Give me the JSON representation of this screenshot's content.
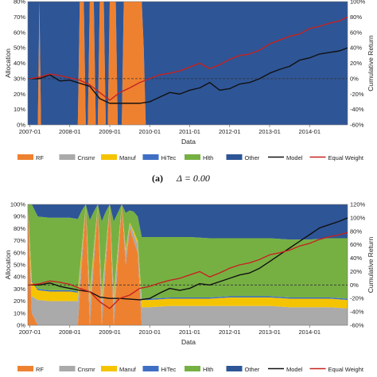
{
  "colors": {
    "RF": "#ee8130",
    "Cnsmr": "#aaaaaa",
    "Manuf": "#f5c400",
    "HiTec": "#3f6fc4",
    "Hlth": "#76b043",
    "Other": "#2e5596",
    "Model": "#111111",
    "Equal Weight": "#c6231f",
    "zero_line": "#333333"
  },
  "legend": [
    {
      "key": "RF",
      "label": "RF",
      "kind": "box"
    },
    {
      "key": "Cnsmr",
      "label": "Cnsmr",
      "kind": "box"
    },
    {
      "key": "Manuf",
      "label": "Manuf",
      "kind": "box"
    },
    {
      "key": "HiTec",
      "label": "HiTec",
      "kind": "box"
    },
    {
      "key": "Hlth",
      "label": "Hlth",
      "kind": "box"
    },
    {
      "key": "Other",
      "label": "Other",
      "kind": "box"
    },
    {
      "key": "Model",
      "label": "Model",
      "kind": "line"
    },
    {
      "key": "Equal Weight",
      "label": "Equal Weight",
      "kind": "line"
    }
  ],
  "chart_data": [
    {
      "type": "area",
      "caption_label": "(a)",
      "caption_math": "Δ = 0.00",
      "xlabel": "Data",
      "ylabel_left": "Allocation",
      "ylabel_right": "Cumulative Return",
      "x_ticks": [
        "2007-01",
        "2008-01",
        "2009-01",
        "2010-01",
        "2011-01",
        "2012-01",
        "2013-01",
        "2014-01"
      ],
      "y_left_ticks": [
        "0%",
        "10%",
        "20%",
        "30%",
        "40%",
        "50%",
        "60%",
        "70%",
        "80%"
      ],
      "y_right_ticks": [
        "-60%",
        "-40%",
        "-20%",
        "0%",
        "20%",
        "40%",
        "60%",
        "80%",
        "100%"
      ],
      "ylim_left": [
        0,
        0.8
      ],
      "ylim_right": [
        -0.6,
        1.0
      ],
      "zero_line": true,
      "allocation": {
        "x": [
          2006.95,
          2007.2,
          2007.24,
          2007.28,
          2008.2,
          2008.25,
          2008.3,
          2008.35,
          2008.4,
          2008.45,
          2008.5,
          2008.55,
          2008.6,
          2008.65,
          2008.7,
          2008.75,
          2008.8,
          2008.85,
          2008.9,
          2008.95,
          2009.0,
          2009.05,
          2009.1,
          2009.15,
          2009.2,
          2009.25,
          2009.3,
          2009.35,
          2009.4,
          2009.45,
          2009.5,
          2009.55,
          2009.6,
          2009.65,
          2009.7,
          2009.75,
          2009.8,
          2009.85,
          2009.9,
          2014.95
        ],
        "series": [
          {
            "name": "RF",
            "values": [
              0,
              0,
              1,
              0,
              0,
              1,
              1,
              1,
              0,
              0,
              1,
              1,
              1,
              0,
              0,
              1,
              1,
              1,
              0,
              0,
              1,
              1,
              1,
              1,
              0,
              0,
              0,
              1,
              1,
              1,
              1,
              1,
              1,
              1,
              1,
              1,
              1,
              0.5,
              0,
              0
            ]
          },
          {
            "name": "Cnsmr",
            "values": [
              0,
              0,
              0,
              0,
              0,
              0,
              0,
              0,
              0,
              0,
              0,
              0,
              0,
              0,
              0,
              0,
              0,
              0,
              0,
              0,
              0,
              0,
              0,
              0,
              0,
              0,
              0,
              0,
              0,
              0,
              0,
              0,
              0,
              0,
              0,
              0,
              0,
              0,
              0,
              0
            ]
          },
          {
            "name": "Manuf",
            "values": [
              0,
              0,
              0,
              0,
              0,
              0,
              0,
              0,
              0,
              0,
              0,
              0,
              0,
              0,
              0,
              0,
              0,
              0,
              0,
              0,
              0,
              0,
              0,
              0,
              0,
              0,
              0,
              0,
              0,
              0,
              0,
              0,
              0,
              0,
              0,
              0,
              0,
              0,
              0,
              0
            ]
          },
          {
            "name": "HiTec",
            "values": [
              0,
              0,
              0,
              0,
              0,
              0,
              0,
              0,
              0,
              0,
              0,
              0,
              0,
              0,
              0,
              0,
              0,
              0,
              0,
              0,
              0,
              0,
              0,
              0,
              0,
              0,
              0,
              0,
              0,
              0,
              0,
              0,
              0,
              0,
              0,
              0,
              0,
              0,
              0,
              0
            ]
          },
          {
            "name": "Hlth",
            "values": [
              0,
              0,
              0,
              0,
              0,
              0,
              0,
              0,
              0,
              0,
              0,
              0,
              0,
              0,
              0,
              0,
              0,
              0,
              0,
              0,
              0,
              0,
              0,
              0,
              0,
              0,
              0,
              0,
              0,
              0,
              0,
              0,
              0,
              0,
              0,
              0,
              0,
              0,
              0,
              0
            ]
          },
          {
            "name": "Other",
            "values": [
              1,
              1,
              0,
              1,
              1,
              0,
              0,
              0,
              1,
              1,
              0,
              0,
              0,
              1,
              1,
              0,
              0,
              0,
              1,
              1,
              0,
              0,
              0,
              0,
              1,
              1,
              1,
              0,
              0,
              0,
              0,
              0,
              0,
              0,
              0,
              0,
              0,
              0.5,
              1,
              1
            ]
          }
        ]
      },
      "returns": {
        "x": [
          2007.0,
          2007.25,
          2007.5,
          2007.75,
          2008.0,
          2008.25,
          2008.5,
          2008.75,
          2009.0,
          2009.25,
          2009.5,
          2009.75,
          2010.0,
          2010.25,
          2010.5,
          2010.75,
          2011.0,
          2011.25,
          2011.5,
          2011.75,
          2012.0,
          2012.25,
          2012.5,
          2012.75,
          2013.0,
          2013.25,
          2013.5,
          2013.75,
          2014.0,
          2014.25,
          2014.5,
          2014.75,
          2014.95
        ],
        "series": [
          {
            "name": "Model",
            "values": [
              0.0,
              0.0,
              0.05,
              -0.03,
              -0.02,
              -0.06,
              -0.1,
              -0.26,
              -0.32,
              -0.32,
              -0.32,
              -0.32,
              -0.3,
              -0.24,
              -0.18,
              -0.2,
              -0.15,
              -0.12,
              -0.05,
              -0.15,
              -0.13,
              -0.07,
              -0.05,
              0.0,
              0.07,
              0.12,
              0.16,
              0.24,
              0.27,
              0.32,
              0.34,
              0.36,
              0.4
            ]
          },
          {
            "name": "Equal Weight",
            "values": [
              0.0,
              0.02,
              0.06,
              0.04,
              0.01,
              -0.02,
              -0.08,
              -0.18,
              -0.28,
              -0.18,
              -0.12,
              -0.05,
              0.0,
              0.05,
              0.07,
              0.1,
              0.15,
              0.2,
              0.13,
              0.18,
              0.25,
              0.3,
              0.32,
              0.37,
              0.45,
              0.5,
              0.55,
              0.58,
              0.65,
              0.68,
              0.72,
              0.75,
              0.8
            ]
          }
        ]
      }
    },
    {
      "type": "area",
      "caption_label": "",
      "caption_math": "",
      "xlabel": "Data",
      "ylabel_left": "Allocation",
      "ylabel_right": "Cumulative Return",
      "x_ticks": [
        "2007-01",
        "2008-01",
        "2009-01",
        "2010-01",
        "2011-01",
        "2012-01",
        "2013-01",
        "2014-01"
      ],
      "y_left_ticks": [
        "0%",
        "10%",
        "20%",
        "30%",
        "40%",
        "50%",
        "60%",
        "70%",
        "80%",
        "90%",
        "100%"
      ],
      "y_right_ticks": [
        "-60%",
        "-40%",
        "-20%",
        "0%",
        "20%",
        "40%",
        "60%",
        "80%",
        "100%",
        "120%"
      ],
      "ylim_left": [
        0,
        1.0
      ],
      "ylim_right": [
        -0.6,
        1.2
      ],
      "zero_line": true,
      "allocation": {
        "x": [
          2006.95,
          2007.05,
          2007.2,
          2007.5,
          2008.0,
          2008.2,
          2008.3,
          2008.4,
          2008.5,
          2008.6,
          2008.7,
          2008.8,
          2008.9,
          2009.0,
          2009.1,
          2009.2,
          2009.3,
          2009.4,
          2009.5,
          2009.6,
          2009.7,
          2009.8,
          2010.0,
          2010.5,
          2011.0,
          2011.5,
          2012.0,
          2012.5,
          2013.0,
          2013.5,
          2014.0,
          2014.5,
          2014.95
        ],
        "series": [
          {
            "name": "RF",
            "values": [
              1.0,
              0.1,
              0.0,
              0.0,
              0.0,
              0.0,
              0.5,
              1.0,
              0.0,
              0.5,
              1.0,
              0.0,
              0.5,
              1.0,
              0.0,
              0.5,
              1.0,
              0.5,
              0.8,
              0.7,
              0.6,
              0.0,
              0.0,
              0.0,
              0.0,
              0.0,
              0.0,
              0.0,
              0.0,
              0.0,
              0.0,
              0.0,
              0.0
            ]
          },
          {
            "name": "Cnsmr",
            "values": [
              0.0,
              0.14,
              0.21,
              0.2,
              0.2,
              0.2,
              0.1,
              0.0,
              0.19,
              0.1,
              0.0,
              0.19,
              0.1,
              0.0,
              0.19,
              0.1,
              0.0,
              0.1,
              0.04,
              0.06,
              0.07,
              0.15,
              0.15,
              0.16,
              0.16,
              0.16,
              0.16,
              0.16,
              0.16,
              0.15,
              0.15,
              0.15,
              0.14
            ]
          },
          {
            "name": "Manuf",
            "values": [
              0.0,
              0.12,
              0.08,
              0.08,
              0.08,
              0.07,
              0.04,
              0.0,
              0.07,
              0.04,
              0.0,
              0.06,
              0.03,
              0.0,
              0.06,
              0.03,
              0.0,
              0.03,
              0.01,
              0.02,
              0.03,
              0.06,
              0.06,
              0.06,
              0.06,
              0.06,
              0.07,
              0.07,
              0.07,
              0.07,
              0.07,
              0.07,
              0.07
            ]
          },
          {
            "name": "HiTec",
            "values": [
              0.0,
              0.01,
              0.01,
              0.01,
              0.01,
              0.01,
              0.0,
              0.0,
              0.01,
              0.0,
              0.0,
              0.01,
              0.0,
              0.0,
              0.01,
              0.0,
              0.0,
              0.0,
              0.0,
              0.0,
              0.0,
              0.01,
              0.01,
              0.01,
              0.01,
              0.01,
              0.01,
              0.01,
              0.01,
              0.01,
              0.01,
              0.01,
              0.01
            ]
          },
          {
            "name": "Hlth",
            "values": [
              0.0,
              0.68,
              0.6,
              0.6,
              0.6,
              0.6,
              0.31,
              0.0,
              0.6,
              0.3,
              0.0,
              0.6,
              0.31,
              0.0,
              0.6,
              0.3,
              0.0,
              0.3,
              0.1,
              0.16,
              0.2,
              0.51,
              0.51,
              0.5,
              0.5,
              0.49,
              0.48,
              0.48,
              0.48,
              0.48,
              0.48,
              0.49,
              0.5
            ]
          },
          {
            "name": "Other",
            "values": [
              0.0,
              0.05,
              0.1,
              0.11,
              0.11,
              0.12,
              0.05,
              0.0,
              0.13,
              0.06,
              0.0,
              0.14,
              0.06,
              0.0,
              0.14,
              0.07,
              0.0,
              0.07,
              0.05,
              0.06,
              0.1,
              0.27,
              0.27,
              0.27,
              0.27,
              0.28,
              0.28,
              0.28,
              0.28,
              0.29,
              0.29,
              0.28,
              0.28
            ]
          }
        ]
      },
      "returns": {
        "x": [
          2007.0,
          2007.25,
          2007.5,
          2007.75,
          2008.0,
          2008.25,
          2008.5,
          2008.75,
          2009.0,
          2009.25,
          2009.5,
          2009.75,
          2010.0,
          2010.25,
          2010.5,
          2010.75,
          2011.0,
          2011.25,
          2011.5,
          2011.75,
          2012.0,
          2012.25,
          2012.5,
          2012.75,
          2013.0,
          2013.25,
          2013.5,
          2013.75,
          2014.0,
          2014.25,
          2014.5,
          2014.75,
          2014.95
        ],
        "series": [
          {
            "name": "Model",
            "values": [
              0.0,
              0.0,
              0.03,
              -0.02,
              -0.05,
              -0.08,
              -0.1,
              -0.18,
              -0.2,
              -0.2,
              -0.21,
              -0.22,
              -0.2,
              -0.12,
              -0.05,
              -0.08,
              -0.05,
              0.02,
              0.0,
              0.05,
              0.1,
              0.15,
              0.18,
              0.25,
              0.35,
              0.45,
              0.55,
              0.65,
              0.75,
              0.85,
              0.9,
              0.95,
              1.0
            ]
          },
          {
            "name": "Equal Weight",
            "values": [
              0.0,
              0.02,
              0.06,
              0.04,
              0.01,
              -0.05,
              -0.1,
              -0.25,
              -0.35,
              -0.2,
              -0.15,
              -0.05,
              -0.02,
              0.03,
              0.07,
              0.1,
              0.15,
              0.2,
              0.12,
              0.18,
              0.25,
              0.3,
              0.33,
              0.38,
              0.45,
              0.48,
              0.52,
              0.58,
              0.62,
              0.68,
              0.72,
              0.75,
              0.78
            ]
          }
        ]
      }
    }
  ]
}
